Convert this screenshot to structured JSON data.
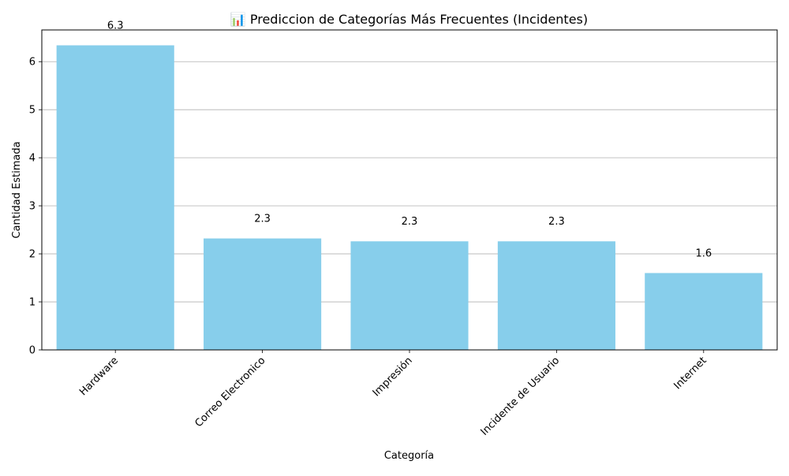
{
  "chart_data": {
    "type": "bar",
    "title": "📊 Prediccion de Categorías Más Frecuentes (Incidentes)",
    "xlabel": "Categoría",
    "ylabel": "Cantidad Estimada",
    "categories": [
      "Hardware",
      "Correo Electronico",
      "Impresión",
      "Incidente de Usuario",
      "Internet"
    ],
    "values": [
      6.34,
      2.32,
      2.26,
      2.26,
      1.6
    ],
    "value_labels": [
      "6.3",
      "2.3",
      "2.3",
      "2.3",
      "1.6"
    ],
    "ylim": [
      0,
      6.66
    ],
    "yticks": [
      0,
      1,
      2,
      3,
      4,
      5,
      6
    ],
    "ytick_labels": [
      "0",
      "1",
      "2",
      "3",
      "4",
      "5",
      "6"
    ],
    "grid": "y",
    "colors": {
      "bar": "#87ceeb",
      "grid": "#b0b0b0",
      "axis": "#000000"
    }
  }
}
